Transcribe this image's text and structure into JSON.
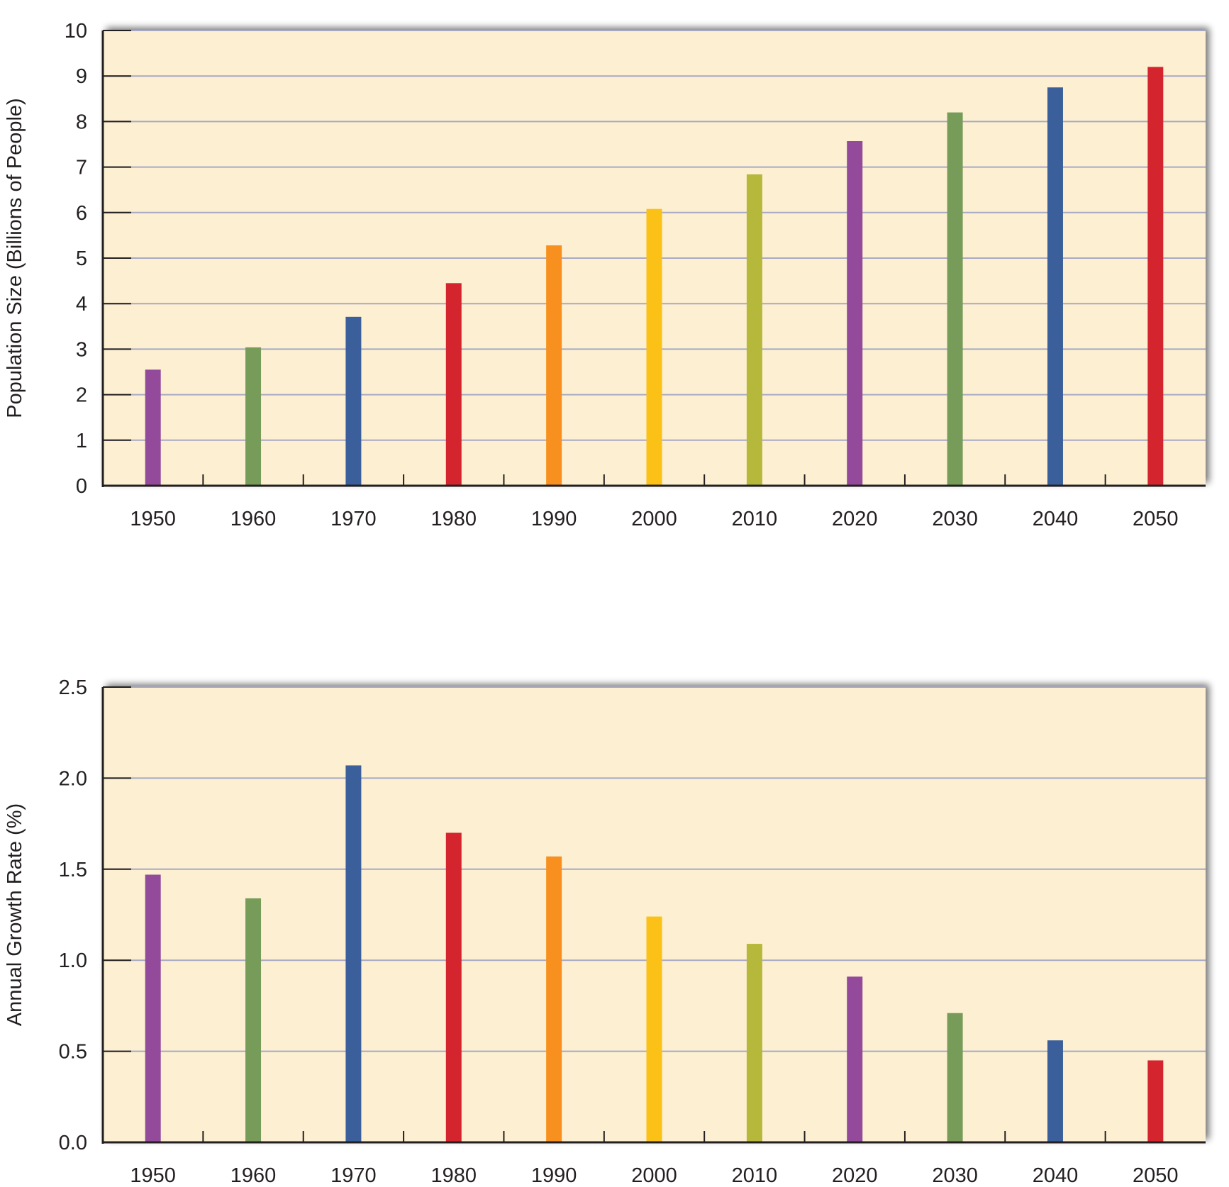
{
  "chart_data": [
    {
      "type": "bar",
      "ylabel": "Population Size (Billions of People)",
      "xlabel": "",
      "categories": [
        "1950",
        "1960",
        "1970",
        "1980",
        "1990",
        "2000",
        "2010",
        "2020",
        "2030",
        "2040",
        "2050"
      ],
      "values": [
        2.55,
        3.04,
        3.71,
        4.45,
        5.28,
        6.08,
        6.84,
        7.57,
        8.2,
        8.75,
        9.2
      ],
      "ylim": [
        0,
        10
      ],
      "yticks": [
        "0",
        "1",
        "2",
        "3",
        "4",
        "5",
        "6",
        "7",
        "8",
        "9",
        "10"
      ],
      "grid": true,
      "legend": "none"
    },
    {
      "type": "bar",
      "ylabel": "Annual Growth Rate (%)",
      "xlabel": "",
      "categories": [
        "1950",
        "1960",
        "1970",
        "1980",
        "1990",
        "2000",
        "2010",
        "2020",
        "2030",
        "2040",
        "2050"
      ],
      "values": [
        1.47,
        1.34,
        2.07,
        1.7,
        1.57,
        1.24,
        1.09,
        0.91,
        0.71,
        0.56,
        0.45
      ],
      "ylim": [
        0,
        2.5
      ],
      "yticks": [
        "0.0",
        "0.5",
        "1.0",
        "1.5",
        "2.0",
        "2.5"
      ],
      "grid": true,
      "legend": "none"
    }
  ],
  "colors": {
    "plot_background": "#fdf0d2",
    "gridline": "#a7a9c4",
    "axis": "#231f20",
    "bars": [
      "#944a9a",
      "#779c59",
      "#3b5f9b",
      "#d4252f",
      "#f7901e",
      "#fcc117",
      "#b5b83a",
      "#944a9a",
      "#779c59",
      "#3b5f9b",
      "#d4252f"
    ]
  }
}
